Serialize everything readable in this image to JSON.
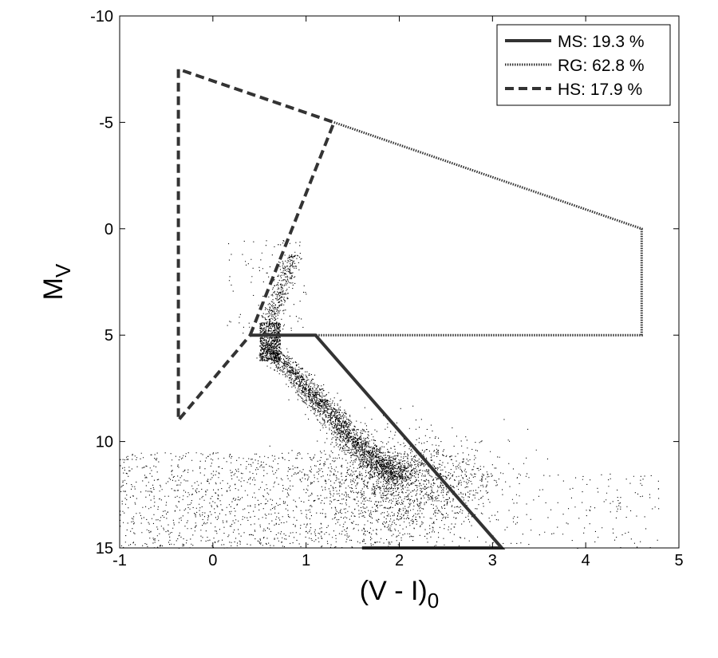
{
  "chart_data": {
    "type": "scatter",
    "title": "",
    "xlabel": "(V - I)",
    "xlabel_sub": "0",
    "ylabel": "M",
    "ylabel_sub": "V",
    "xlim": [
      -1,
      5
    ],
    "ylim": [
      -10,
      15
    ],
    "y_inverted": true,
    "grid": false,
    "legend_position": "top-right",
    "x_ticks": [
      -1,
      0,
      1,
      2,
      3,
      4,
      5
    ],
    "x_tick_labels": [
      "-1",
      "0",
      "1",
      "2",
      "3",
      "4",
      "5"
    ],
    "y_ticks": [
      -10,
      -5,
      0,
      5,
      10,
      15
    ],
    "y_tick_labels": [
      "-10",
      "-5",
      "0",
      "5",
      "10",
      "15"
    ],
    "point_color": "#000000",
    "region_color": "#333333",
    "regions": [
      {
        "name": "MS: 19.3 %",
        "line_style": "solid",
        "polygon": [
          [
            0.4,
            5
          ],
          [
            1.1,
            5
          ],
          [
            3.1,
            15
          ],
          [
            1.6,
            15
          ]
        ]
      },
      {
        "name": "RG: 62.8 %",
        "line_style": "dotted",
        "polygon": [
          [
            1.3,
            -5
          ],
          [
            4.6,
            0
          ],
          [
            4.6,
            5
          ],
          [
            1.1,
            5
          ]
        ]
      },
      {
        "name": "HS: 17.9 %",
        "line_style": "dashed",
        "polygon": [
          [
            0.4,
            5
          ],
          [
            1.3,
            -5
          ],
          [
            -0.37,
            -7.5
          ],
          [
            -0.37,
            9
          ],
          [
            0.4,
            5
          ]
        ]
      }
    ],
    "point_clusters": [
      {
        "description": "main sequence ridge",
        "n": 2400,
        "kind": "curve",
        "x_start": 0.55,
        "x_end": 2.0,
        "y_start": 5.6,
        "y_end": 11.6,
        "spread_x": 0.07,
        "spread_y": 0.25
      },
      {
        "description": "turn-off clump",
        "n": 700,
        "kind": "box",
        "x_min": 0.5,
        "x_max": 0.72,
        "y_min": 4.4,
        "y_max": 6.2
      },
      {
        "description": "red giant branch",
        "n": 350,
        "kind": "line",
        "x_start": 0.6,
        "x_end": 0.85,
        "y_start": 4.5,
        "y_end": 1.2,
        "spread_x": 0.05
      },
      {
        "description": "lower main sequence spread",
        "n": 1500,
        "kind": "gauss",
        "x_mean": 2.1,
        "y_mean": 12.0,
        "sd_x": 0.45,
        "sd_y": 1.2
      },
      {
        "description": "field stars",
        "n": 1300,
        "kind": "box",
        "x_min": -1.0,
        "x_max": 2.0,
        "y_min": 10.5,
        "y_max": 15.0
      },
      {
        "description": "sparse blue stars",
        "n": 110,
        "kind": "box",
        "x_min": 0.15,
        "x_max": 1.0,
        "y_min": 0.5,
        "y_max": 5.0
      },
      {
        "description": "faint red field",
        "n": 220,
        "kind": "box",
        "x_min": 2.0,
        "x_max": 4.8,
        "y_min": 11.5,
        "y_max": 15.0
      }
    ]
  }
}
